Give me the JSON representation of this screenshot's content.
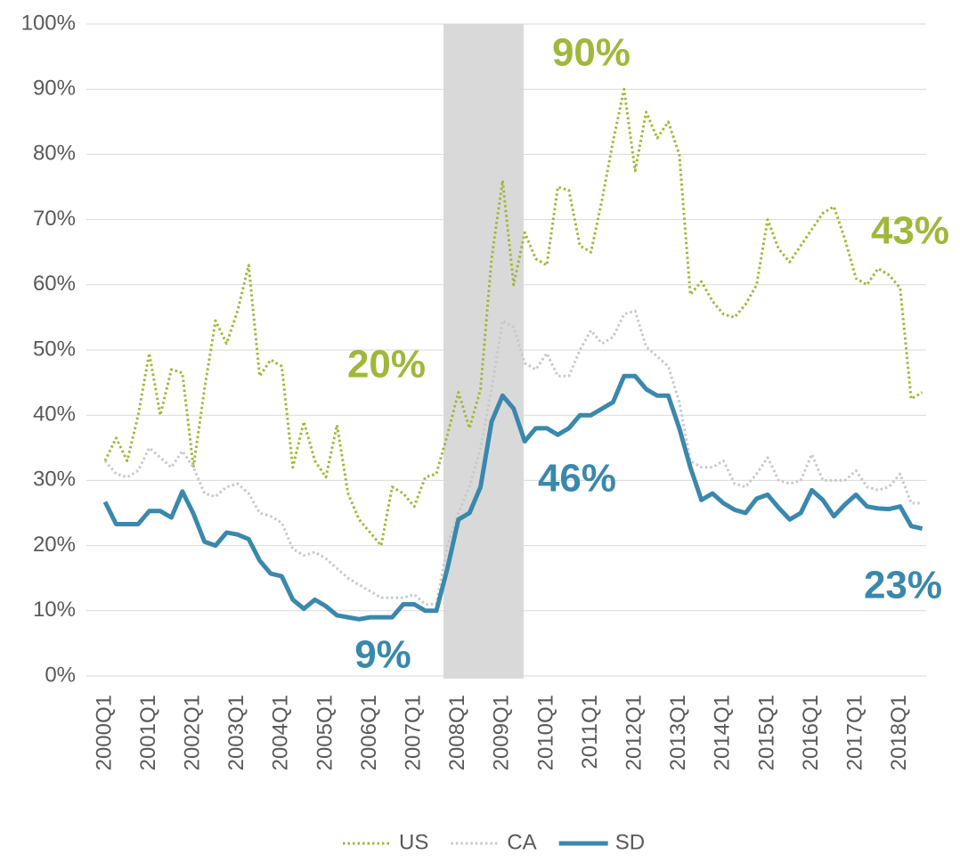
{
  "chart_data": {
    "type": "line",
    "categories": [
      "2000Q1",
      null,
      null,
      null,
      "2001Q1",
      null,
      null,
      null,
      "2002Q1",
      null,
      null,
      null,
      "2003Q1",
      null,
      null,
      null,
      "2004Q1",
      null,
      null,
      null,
      "2005Q1",
      null,
      null,
      null,
      "2006Q1",
      null,
      null,
      null,
      "2007Q1",
      null,
      null,
      null,
      "2008Q1",
      null,
      null,
      null,
      "2009Q1",
      null,
      null,
      null,
      "2010Q1",
      null,
      null,
      null,
      "2011Q1",
      null,
      null,
      null,
      "2012Q1",
      null,
      null,
      null,
      "2013Q1",
      null,
      null,
      null,
      "2014Q1",
      null,
      null,
      null,
      "2015Q1",
      null,
      null,
      null,
      "2016Q1",
      null,
      null,
      null,
      "2017Q1",
      null,
      null,
      null,
      "2018Q1",
      null,
      null
    ],
    "series": [
      {
        "name": "US",
        "color": "#9fb83a",
        "style": "dotted",
        "values": [
          33,
          36.5,
          33,
          40,
          49.5,
          40,
          47,
          46.5,
          32,
          44,
          54.5,
          51,
          56,
          63,
          46,
          48.5,
          47.5,
          32,
          39,
          33,
          30.5,
          38.5,
          28,
          24,
          22,
          20,
          29,
          28,
          26,
          30.5,
          31,
          37,
          43.5,
          38,
          44,
          64,
          76,
          60,
          68,
          64,
          63,
          75,
          74.5,
          66,
          65,
          73,
          82,
          90,
          77.5,
          86.5,
          82.5,
          85,
          80,
          58.5,
          60.5,
          57.5,
          55.5,
          55,
          57,
          60,
          70,
          65.5,
          63.5,
          66,
          68.5,
          71,
          72,
          67,
          61,
          60,
          62.5,
          61.5,
          59.5,
          42.5,
          43.5
        ]
      },
      {
        "name": "CA",
        "color": "#c9c9c9",
        "style": "dotted",
        "values": [
          33,
          31,
          30.5,
          31.5,
          35,
          33.5,
          32,
          34.5,
          32,
          28,
          27.5,
          29,
          29.5,
          28,
          25,
          24.5,
          23.5,
          19.5,
          18.5,
          19,
          18,
          16.5,
          15,
          14,
          13,
          12,
          12,
          12,
          12.5,
          11,
          11,
          20,
          25,
          29,
          35,
          44,
          54.5,
          53.5,
          48,
          47,
          49.5,
          46,
          46,
          50,
          53,
          51,
          52,
          55.5,
          56,
          50.5,
          49,
          47.5,
          42,
          33,
          32,
          32,
          33,
          29.5,
          29,
          31,
          33.5,
          30,
          29.5,
          30,
          34,
          30,
          30,
          30,
          31.5,
          29,
          28.5,
          29,
          31,
          26.5,
          26.5
        ]
      },
      {
        "name": "SD",
        "color": "#3a88ac",
        "style": "solid",
        "values": [
          26.7,
          23.3,
          23.3,
          23.3,
          25.3,
          25.3,
          24.3,
          28.3,
          24.9,
          20.6,
          20,
          22,
          21.7,
          21,
          17.7,
          15.7,
          15.3,
          11.7,
          10.3,
          11.7,
          10.7,
          9.3,
          9,
          8.7,
          9,
          9,
          9,
          11,
          11,
          10,
          10,
          16.5,
          24,
          25,
          29,
          39,
          43,
          41,
          36,
          38,
          38,
          37,
          38,
          40,
          40,
          41,
          42,
          46,
          46,
          44,
          43,
          43,
          38,
          32,
          27,
          28,
          26.5,
          25.5,
          25,
          27.2,
          27.8,
          25.8,
          24,
          25,
          28.5,
          27,
          24.5,
          26.3,
          27.8,
          26,
          25.7,
          25.6,
          26,
          23,
          22.6
        ]
      }
    ],
    "ylim": [
      0,
      100
    ],
    "yticks": [
      {
        "value": 0,
        "label": "0%"
      },
      {
        "value": 10,
        "label": "10%"
      },
      {
        "value": 20,
        "label": "20%"
      },
      {
        "value": 30,
        "label": "30%"
      },
      {
        "value": 40,
        "label": "40%"
      },
      {
        "value": 50,
        "label": "50%"
      },
      {
        "value": 60,
        "label": "60%"
      },
      {
        "value": 70,
        "label": "70%"
      },
      {
        "value": 80,
        "label": "80%"
      },
      {
        "value": 90,
        "label": "90%"
      },
      {
        "value": 100,
        "label": "100%"
      }
    ],
    "grid": true,
    "legend": "bottom",
    "annotations": [
      {
        "text": "90%",
        "color": "#9fb83a"
      },
      {
        "text": "43%",
        "color": "#9fb83a"
      },
      {
        "text": "20%",
        "color": "#9fb83a"
      },
      {
        "text": "46%",
        "color": "#3a88ac"
      },
      {
        "text": "9%",
        "color": "#3a88ac"
      },
      {
        "text": "23%",
        "color": "#3a88ac"
      }
    ]
  }
}
